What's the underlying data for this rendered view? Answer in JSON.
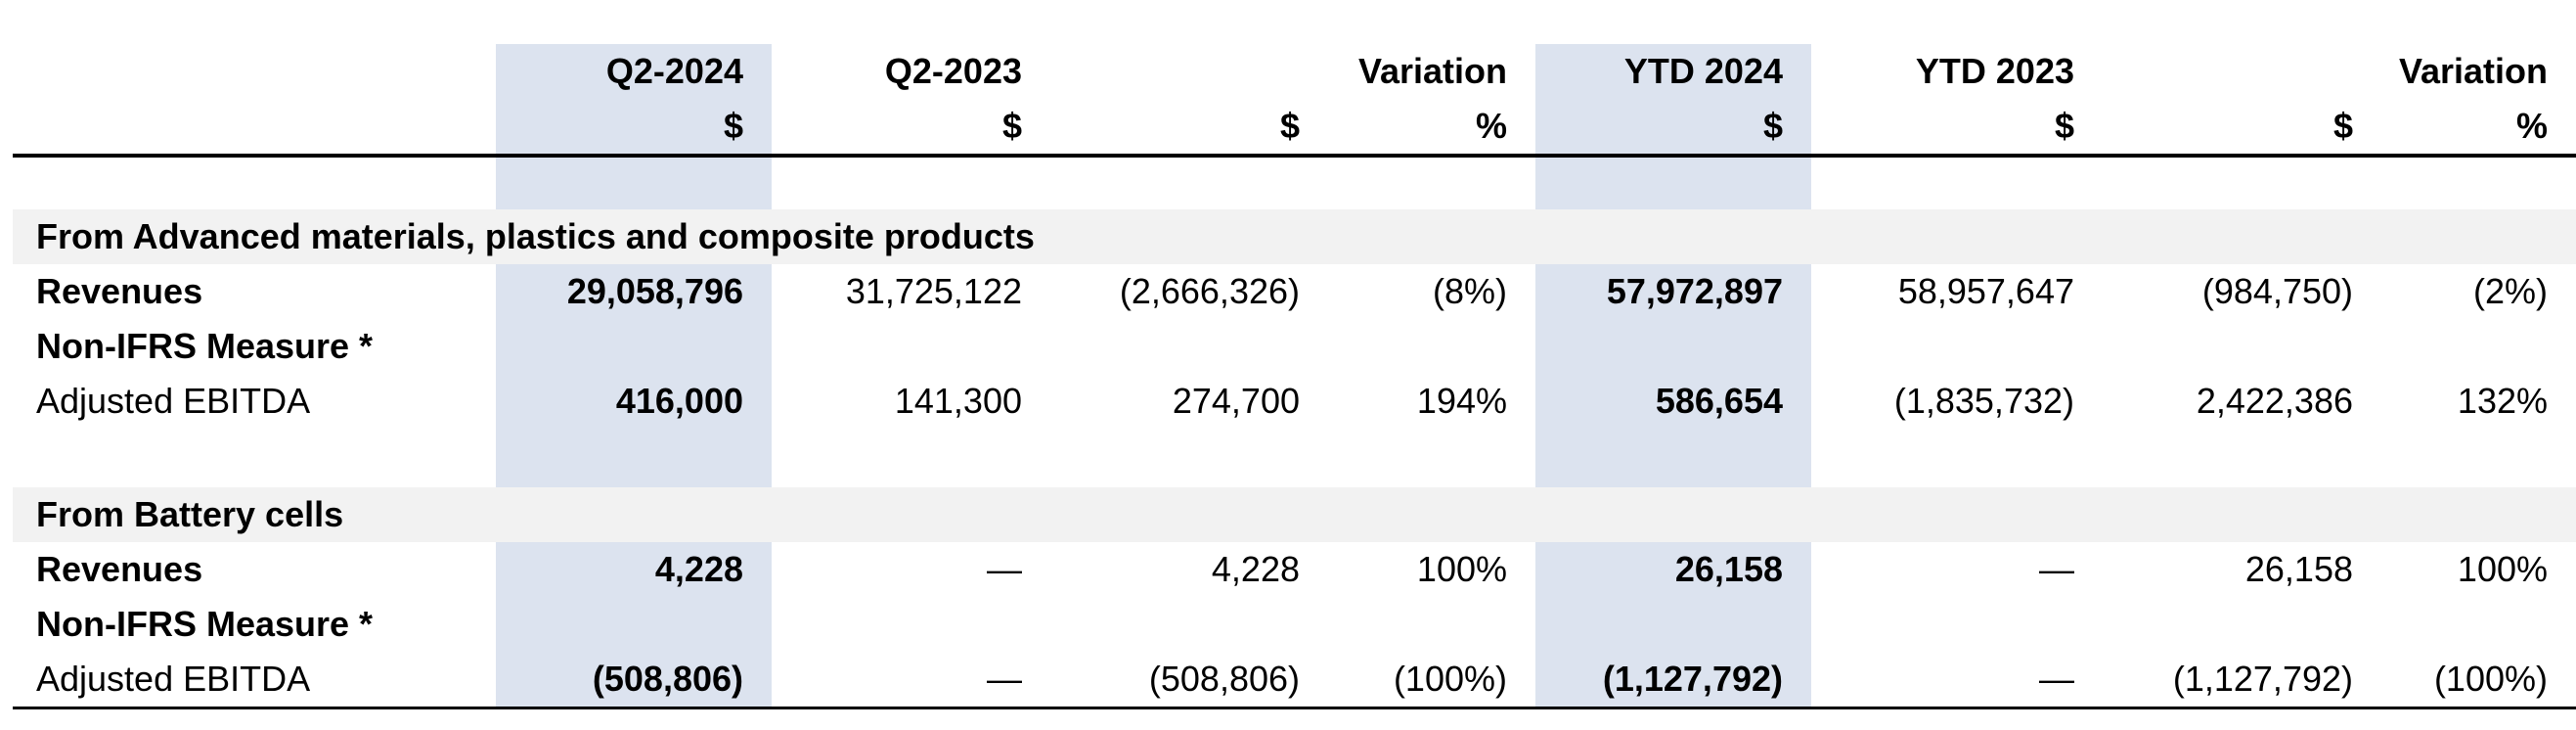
{
  "headers": {
    "row1": [
      "Q2-2024",
      "Q2-2023",
      "",
      "Variation",
      "YTD 2024",
      "YTD 2023",
      "",
      "Variation"
    ],
    "row2": [
      "$",
      "$",
      "$",
      "%",
      "$",
      "$",
      "$",
      "%"
    ]
  },
  "sections": [
    {
      "title": "From Advanced materials, plastics and composite products",
      "rows": [
        {
          "label": "Revenues",
          "bold": true,
          "values": [
            "29,058,796",
            "31,725,122",
            "(2,666,326)",
            "(8%)",
            "57,972,897",
            "58,957,647",
            "(984,750)",
            "(2%)"
          ]
        },
        {
          "label": "Non-IFRS Measure *",
          "bold": true,
          "values": []
        },
        {
          "label": "Adjusted EBITDA",
          "bold": false,
          "values": [
            "416,000",
            "141,300",
            "274,700",
            "194%",
            "586,654",
            "(1,835,732)",
            "2,422,386",
            "132%"
          ]
        }
      ]
    },
    {
      "title": "From Battery cells",
      "rows": [
        {
          "label": "Revenues",
          "bold": true,
          "values": [
            "4,228",
            "—",
            "4,228",
            "100%",
            "26,158",
            "—",
            "26,158",
            "100%"
          ]
        },
        {
          "label": "Non-IFRS Measure *",
          "bold": true,
          "values": []
        },
        {
          "label": "Adjusted EBITDA",
          "bold": false,
          "values": [
            "(508,806)",
            "—",
            "(508,806)",
            "(100%)",
            "(1,127,792)",
            "—",
            "(1,127,792)",
            "(100%)"
          ]
        }
      ]
    }
  ],
  "colors": {
    "highlight_band": "#dce3ef",
    "section_bg": "#f2f2f2"
  }
}
